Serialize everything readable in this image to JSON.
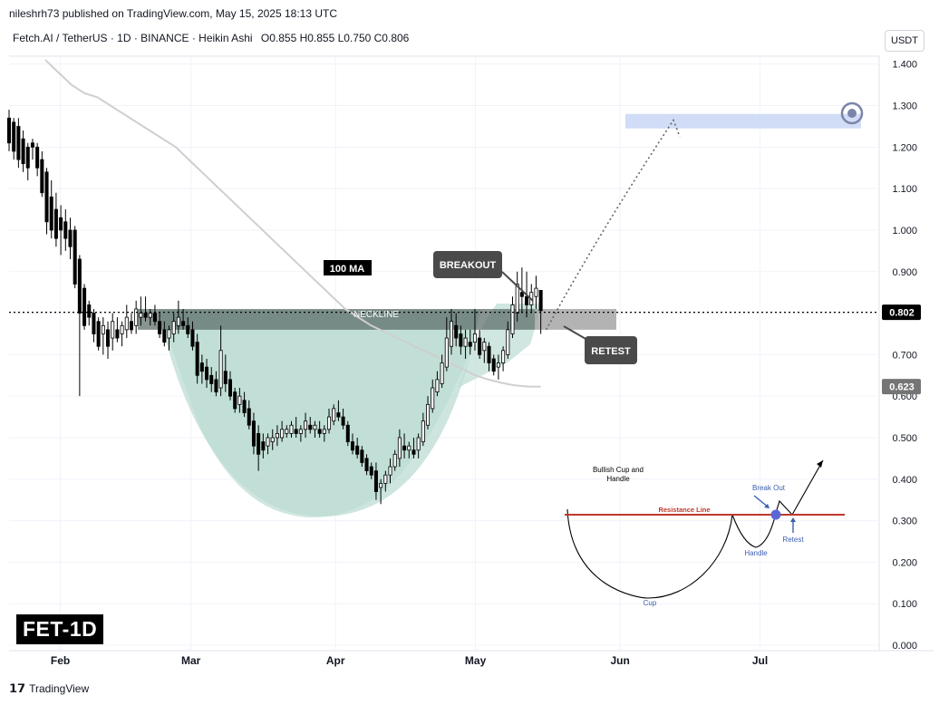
{
  "header": {
    "published": "nileshrh73 published on TradingView.com, May 15, 2025 18:13 UTC",
    "symbol_line": "Fetch.AI / TetherUS · 1D · BINANCE · Heikin Ashi",
    "ohlc": "O0.855  H0.855  L0.750  C0.806",
    "currency": "USDT"
  },
  "footer": {
    "brand": "TradingView",
    "ticker_label": "FET-1D"
  },
  "colors": {
    "bull": "#ffffff",
    "bear": "#000000",
    "ma": "#cfcfcf",
    "cup_fill": "#bcdcd3",
    "neckline_zone": "#5a6b66",
    "retest_zone": "#a0a0a0",
    "target_zone": "#c9d7f5",
    "resistance": "#c0392b",
    "breakout_dot": "#5a66d6"
  },
  "chart_data": {
    "type": "candlestick",
    "interval": "1D",
    "style": "Heikin Ashi",
    "x_dates": {
      "first": "2025-01-21",
      "last": "2025-05-15"
    },
    "x_axis": {
      "ticks": [
        {
          "label": "Feb",
          "date": "2025-02-01"
        },
        {
          "label": "Mar",
          "date": "2025-03-01"
        },
        {
          "label": "Apr",
          "date": "2025-04-01"
        },
        {
          "label": "May",
          "date": "2025-05-01"
        },
        {
          "label": "Jun",
          "date": "2025-06-01"
        },
        {
          "label": "Jul",
          "date": "2025-07-01"
        }
      ],
      "range": [
        "2025-01-21",
        "2025-07-25"
      ]
    },
    "y_axis": {
      "ticks": [
        "1.400",
        "1.300",
        "1.200",
        "1.100",
        "1.000",
        "0.900",
        "0.800",
        "0.700",
        "0.600",
        "0.500",
        "0.400",
        "0.300",
        "0.200",
        "0.100",
        "0.000"
      ],
      "tick_values": [
        1.4,
        1.3,
        1.2,
        1.1,
        1.0,
        0.9,
        0.8,
        0.7,
        0.6,
        0.5,
        0.4,
        0.3,
        0.2,
        0.1,
        0.0
      ],
      "range": [
        0.0,
        1.43
      ]
    },
    "last_price": {
      "label": "0.802",
      "value": 0.802
    },
    "ma": {
      "name": "100 MA",
      "last_label": "0.623",
      "last_value": 0.623,
      "values": [
        1.41,
        1.38,
        1.35,
        1.33,
        1.32,
        1.3,
        1.28,
        1.26,
        1.24,
        1.22,
        1.2,
        1.17,
        1.14,
        1.11,
        1.08,
        1.05,
        1.02,
        0.99,
        0.96,
        0.93,
        0.9,
        0.87,
        0.84,
        0.81,
        0.79,
        0.77,
        0.755,
        0.74,
        0.725,
        0.71,
        0.695,
        0.68,
        0.665,
        0.65,
        0.64,
        0.632,
        0.626,
        0.623,
        0.623
      ]
    },
    "annotations": {
      "neckline": "NECKLINE",
      "breakout": "BREAKOUT",
      "retest": "RETEST",
      "ma_label": "100 MA",
      "neckline_zone": [
        0.76,
        0.81
      ],
      "target_zone": [
        1.245,
        1.28
      ],
      "inset": {
        "title": "Bullish Cup and Handle",
        "resistance": "Resistance Line",
        "breakout": "Break Out",
        "handle": "Handle",
        "retest": "Retest",
        "cup": "Cup"
      }
    },
    "candles": [
      {
        "o": 1.27,
        "h": 1.29,
        "l": 1.19,
        "c": 1.21
      },
      {
        "o": 1.26,
        "h": 1.27,
        "l": 1.17,
        "c": 1.19
      },
      {
        "o": 1.25,
        "h": 1.27,
        "l": 1.15,
        "c": 1.17
      },
      {
        "o": 1.22,
        "h": 1.24,
        "l": 1.14,
        "c": 1.16
      },
      {
        "o": 1.2,
        "h": 1.21,
        "l": 1.12,
        "c": 1.15
      },
      {
        "o": 1.21,
        "h": 1.22,
        "l": 1.17,
        "c": 1.2
      },
      {
        "o": 1.2,
        "h": 1.21,
        "l": 1.13,
        "c": 1.15
      },
      {
        "o": 1.17,
        "h": 1.19,
        "l": 1.08,
        "c": 1.09
      },
      {
        "o": 1.14,
        "h": 1.15,
        "l": 0.99,
        "c": 1.02
      },
      {
        "o": 1.08,
        "h": 1.12,
        "l": 0.98,
        "c": 1.0
      },
      {
        "o": 1.05,
        "h": 1.09,
        "l": 0.96,
        "c": 0.98
      },
      {
        "o": 1.03,
        "h": 1.06,
        "l": 0.94,
        "c": 1.0
      },
      {
        "o": 1.02,
        "h": 1.05,
        "l": 0.95,
        "c": 0.98
      },
      {
        "o": 1.0,
        "h": 1.03,
        "l": 0.93,
        "c": 0.96
      },
      {
        "o": 1.0,
        "h": 1.01,
        "l": 0.86,
        "c": 0.87
      },
      {
        "o": 0.93,
        "h": 0.94,
        "l": 0.6,
        "c": 0.8
      },
      {
        "o": 0.86,
        "h": 0.87,
        "l": 0.76,
        "c": 0.77
      },
      {
        "o": 0.82,
        "h": 0.83,
        "l": 0.77,
        "c": 0.79
      },
      {
        "o": 0.8,
        "h": 0.81,
        "l": 0.73,
        "c": 0.75
      },
      {
        "o": 0.78,
        "h": 0.79,
        "l": 0.71,
        "c": 0.72
      },
      {
        "o": 0.75,
        "h": 0.79,
        "l": 0.7,
        "c": 0.77
      },
      {
        "o": 0.76,
        "h": 0.78,
        "l": 0.69,
        "c": 0.72
      },
      {
        "o": 0.74,
        "h": 0.8,
        "l": 0.71,
        "c": 0.78
      },
      {
        "o": 0.76,
        "h": 0.79,
        "l": 0.73,
        "c": 0.74
      },
      {
        "o": 0.75,
        "h": 0.78,
        "l": 0.72,
        "c": 0.77
      },
      {
        "o": 0.76,
        "h": 0.82,
        "l": 0.74,
        "c": 0.79
      },
      {
        "o": 0.78,
        "h": 0.8,
        "l": 0.75,
        "c": 0.76
      },
      {
        "o": 0.77,
        "h": 0.83,
        "l": 0.75,
        "c": 0.81
      },
      {
        "o": 0.79,
        "h": 0.84,
        "l": 0.77,
        "c": 0.8
      },
      {
        "o": 0.8,
        "h": 0.84,
        "l": 0.78,
        "c": 0.79
      },
      {
        "o": 0.79,
        "h": 0.81,
        "l": 0.77,
        "c": 0.8
      },
      {
        "o": 0.8,
        "h": 0.82,
        "l": 0.77,
        "c": 0.78
      },
      {
        "o": 0.78,
        "h": 0.8,
        "l": 0.74,
        "c": 0.75
      },
      {
        "o": 0.76,
        "h": 0.78,
        "l": 0.72,
        "c": 0.73
      },
      {
        "o": 0.74,
        "h": 0.77,
        "l": 0.71,
        "c": 0.76
      },
      {
        "o": 0.75,
        "h": 0.8,
        "l": 0.73,
        "c": 0.78
      },
      {
        "o": 0.77,
        "h": 0.83,
        "l": 0.75,
        "c": 0.79
      },
      {
        "o": 0.78,
        "h": 0.81,
        "l": 0.76,
        "c": 0.77
      },
      {
        "o": 0.77,
        "h": 0.79,
        "l": 0.74,
        "c": 0.75
      },
      {
        "o": 0.76,
        "h": 0.78,
        "l": 0.71,
        "c": 0.72
      },
      {
        "o": 0.73,
        "h": 0.75,
        "l": 0.63,
        "c": 0.65
      },
      {
        "o": 0.68,
        "h": 0.7,
        "l": 0.63,
        "c": 0.66
      },
      {
        "o": 0.67,
        "h": 0.69,
        "l": 0.62,
        "c": 0.64
      },
      {
        "o": 0.65,
        "h": 0.67,
        "l": 0.61,
        "c": 0.63
      },
      {
        "o": 0.64,
        "h": 0.66,
        "l": 0.6,
        "c": 0.61
      },
      {
        "o": 0.62,
        "h": 0.77,
        "l": 0.6,
        "c": 0.71
      },
      {
        "o": 0.66,
        "h": 0.7,
        "l": 0.61,
        "c": 0.63
      },
      {
        "o": 0.64,
        "h": 0.66,
        "l": 0.59,
        "c": 0.6
      },
      {
        "o": 0.61,
        "h": 0.62,
        "l": 0.56,
        "c": 0.57
      },
      {
        "o": 0.58,
        "h": 0.62,
        "l": 0.56,
        "c": 0.6
      },
      {
        "o": 0.59,
        "h": 0.61,
        "l": 0.55,
        "c": 0.56
      },
      {
        "o": 0.57,
        "h": 0.59,
        "l": 0.52,
        "c": 0.53
      },
      {
        "o": 0.54,
        "h": 0.56,
        "l": 0.46,
        "c": 0.48
      },
      {
        "o": 0.51,
        "h": 0.53,
        "l": 0.42,
        "c": 0.46
      },
      {
        "o": 0.49,
        "h": 0.51,
        "l": 0.45,
        "c": 0.47
      },
      {
        "o": 0.48,
        "h": 0.51,
        "l": 0.46,
        "c": 0.5
      },
      {
        "o": 0.49,
        "h": 0.52,
        "l": 0.47,
        "c": 0.5
      },
      {
        "o": 0.5,
        "h": 0.53,
        "l": 0.48,
        "c": 0.51
      },
      {
        "o": 0.5,
        "h": 0.54,
        "l": 0.49,
        "c": 0.52
      },
      {
        "o": 0.51,
        "h": 0.53,
        "l": 0.5,
        "c": 0.52
      },
      {
        "o": 0.51,
        "h": 0.54,
        "l": 0.5,
        "c": 0.53
      },
      {
        "o": 0.52,
        "h": 0.55,
        "l": 0.5,
        "c": 0.51
      },
      {
        "o": 0.51,
        "h": 0.53,
        "l": 0.49,
        "c": 0.52
      },
      {
        "o": 0.52,
        "h": 0.56,
        "l": 0.5,
        "c": 0.54
      },
      {
        "o": 0.53,
        "h": 0.55,
        "l": 0.51,
        "c": 0.52
      },
      {
        "o": 0.52,
        "h": 0.54,
        "l": 0.5,
        "c": 0.53
      },
      {
        "o": 0.52,
        "h": 0.54,
        "l": 0.5,
        "c": 0.51
      },
      {
        "o": 0.51,
        "h": 0.53,
        "l": 0.49,
        "c": 0.52
      },
      {
        "o": 0.52,
        "h": 0.57,
        "l": 0.51,
        "c": 0.55
      },
      {
        "o": 0.54,
        "h": 0.58,
        "l": 0.53,
        "c": 0.57
      },
      {
        "o": 0.56,
        "h": 0.59,
        "l": 0.54,
        "c": 0.55
      },
      {
        "o": 0.55,
        "h": 0.57,
        "l": 0.52,
        "c": 0.53
      },
      {
        "o": 0.53,
        "h": 0.54,
        "l": 0.48,
        "c": 0.49
      },
      {
        "o": 0.49,
        "h": 0.51,
        "l": 0.46,
        "c": 0.47
      },
      {
        "o": 0.48,
        "h": 0.5,
        "l": 0.45,
        "c": 0.46
      },
      {
        "o": 0.47,
        "h": 0.48,
        "l": 0.43,
        "c": 0.44
      },
      {
        "o": 0.45,
        "h": 0.46,
        "l": 0.41,
        "c": 0.42
      },
      {
        "o": 0.43,
        "h": 0.44,
        "l": 0.4,
        "c": 0.41
      },
      {
        "o": 0.42,
        "h": 0.44,
        "l": 0.35,
        "c": 0.37
      },
      {
        "o": 0.38,
        "h": 0.4,
        "l": 0.34,
        "c": 0.39
      },
      {
        "o": 0.39,
        "h": 0.42,
        "l": 0.37,
        "c": 0.41
      },
      {
        "o": 0.41,
        "h": 0.45,
        "l": 0.39,
        "c": 0.43
      },
      {
        "o": 0.43,
        "h": 0.47,
        "l": 0.42,
        "c": 0.46
      },
      {
        "o": 0.45,
        "h": 0.52,
        "l": 0.43,
        "c": 0.5
      },
      {
        "o": 0.48,
        "h": 0.51,
        "l": 0.45,
        "c": 0.47
      },
      {
        "o": 0.47,
        "h": 0.49,
        "l": 0.45,
        "c": 0.48
      },
      {
        "o": 0.47,
        "h": 0.5,
        "l": 0.45,
        "c": 0.46
      },
      {
        "o": 0.47,
        "h": 0.51,
        "l": 0.45,
        "c": 0.5
      },
      {
        "o": 0.49,
        "h": 0.56,
        "l": 0.48,
        "c": 0.54
      },
      {
        "o": 0.53,
        "h": 0.6,
        "l": 0.52,
        "c": 0.58
      },
      {
        "o": 0.57,
        "h": 0.64,
        "l": 0.56,
        "c": 0.62
      },
      {
        "o": 0.61,
        "h": 0.66,
        "l": 0.6,
        "c": 0.64
      },
      {
        "o": 0.63,
        "h": 0.7,
        "l": 0.62,
        "c": 0.68
      },
      {
        "o": 0.67,
        "h": 0.79,
        "l": 0.66,
        "c": 0.74
      },
      {
        "o": 0.72,
        "h": 0.81,
        "l": 0.7,
        "c": 0.78
      },
      {
        "o": 0.77,
        "h": 0.8,
        "l": 0.72,
        "c": 0.74
      },
      {
        "o": 0.75,
        "h": 0.77,
        "l": 0.7,
        "c": 0.72
      },
      {
        "o": 0.72,
        "h": 0.76,
        "l": 0.69,
        "c": 0.74
      },
      {
        "o": 0.73,
        "h": 0.76,
        "l": 0.7,
        "c": 0.72
      },
      {
        "o": 0.73,
        "h": 0.81,
        "l": 0.71,
        "c": 0.75
      },
      {
        "o": 0.74,
        "h": 0.76,
        "l": 0.69,
        "c": 0.7
      },
      {
        "o": 0.71,
        "h": 0.74,
        "l": 0.68,
        "c": 0.73
      },
      {
        "o": 0.72,
        "h": 0.73,
        "l": 0.66,
        "c": 0.68
      },
      {
        "o": 0.69,
        "h": 0.7,
        "l": 0.65,
        "c": 0.66
      },
      {
        "o": 0.67,
        "h": 0.7,
        "l": 0.64,
        "c": 0.68
      },
      {
        "o": 0.68,
        "h": 0.72,
        "l": 0.66,
        "c": 0.71
      },
      {
        "o": 0.7,
        "h": 0.78,
        "l": 0.69,
        "c": 0.76
      },
      {
        "o": 0.75,
        "h": 0.84,
        "l": 0.74,
        "c": 0.82
      },
      {
        "o": 0.8,
        "h": 0.9,
        "l": 0.78,
        "c": 0.87
      },
      {
        "o": 0.85,
        "h": 0.91,
        "l": 0.8,
        "c": 0.84
      },
      {
        "o": 0.84,
        "h": 0.9,
        "l": 0.79,
        "c": 0.82
      },
      {
        "o": 0.82,
        "h": 0.87,
        "l": 0.8,
        "c": 0.85
      },
      {
        "o": 0.84,
        "h": 0.89,
        "l": 0.81,
        "c": 0.86
      },
      {
        "o": 0.855,
        "h": 0.855,
        "l": 0.75,
        "c": 0.806
      }
    ]
  }
}
